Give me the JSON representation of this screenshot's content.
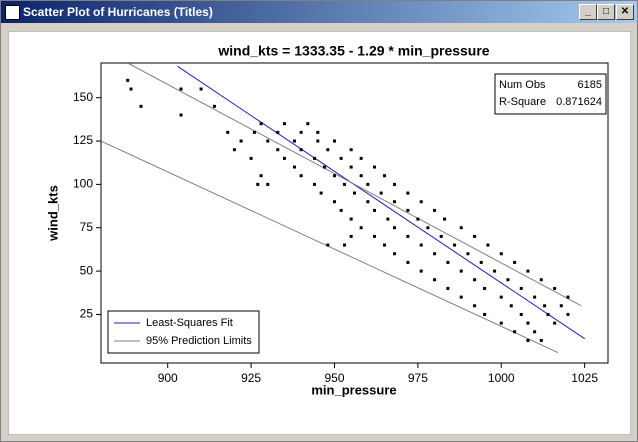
{
  "window": {
    "title": "Scatter Plot of Hurricanes (Titles)"
  },
  "chart_data": {
    "type": "scatter",
    "title": "wind_kts = 1333.35 - 1.29 * min_pressure",
    "xlabel": "min_pressure",
    "ylabel": "wind_kts",
    "xlim": [
      880,
      1032
    ],
    "ylim": [
      -3,
      170
    ],
    "xticks": [
      900,
      925,
      950,
      975,
      1000,
      1025
    ],
    "yticks": [
      25,
      50,
      75,
      100,
      125,
      150
    ],
    "color": "#000000",
    "x": [
      888,
      889,
      892,
      904,
      904,
      910,
      914,
      918,
      920,
      922,
      925,
      927,
      928,
      930,
      948,
      953,
      955,
      928,
      935,
      942,
      926,
      933,
      940,
      945,
      930,
      938,
      945,
      950,
      933,
      940,
      948,
      955,
      935,
      944,
      952,
      958,
      938,
      947,
      955,
      962,
      940,
      950,
      958,
      965,
      944,
      953,
      960,
      968,
      946,
      956,
      964,
      972,
      950,
      960,
      968,
      976,
      952,
      962,
      972,
      980,
      955,
      966,
      975,
      983,
      958,
      968,
      978,
      988,
      962,
      972,
      982,
      992,
      965,
      976,
      986,
      996,
      968,
      980,
      990,
      1000,
      972,
      984,
      994,
      1004,
      976,
      988,
      998,
      1008,
      980,
      992,
      1002,
      1012,
      984,
      995,
      1006,
      1016,
      988,
      1000,
      1010,
      1020,
      992,
      1003,
      1013,
      1018,
      995,
      1006,
      1014,
      1020,
      1000,
      1008,
      1016,
      1004,
      1010,
      1008,
      1012
    ],
    "values": [
      160,
      155,
      145,
      155,
      140,
      155,
      145,
      130,
      120,
      125,
      115,
      100,
      105,
      100,
      65,
      65,
      70,
      135,
      135,
      135,
      130,
      130,
      130,
      130,
      125,
      125,
      125,
      125,
      120,
      120,
      120,
      120,
      115,
      115,
      115,
      115,
      110,
      110,
      110,
      110,
      105,
      105,
      105,
      105,
      100,
      100,
      100,
      100,
      95,
      95,
      95,
      95,
      90,
      90,
      90,
      90,
      85,
      85,
      85,
      85,
      80,
      80,
      80,
      80,
      75,
      75,
      75,
      75,
      70,
      70,
      70,
      70,
      65,
      65,
      65,
      65,
      60,
      60,
      60,
      60,
      55,
      55,
      55,
      55,
      50,
      50,
      50,
      50,
      45,
      45,
      45,
      45,
      40,
      40,
      40,
      40,
      35,
      35,
      35,
      35,
      30,
      30,
      30,
      30,
      25,
      25,
      25,
      25,
      20,
      20,
      20,
      15,
      15,
      10,
      10
    ],
    "series": [
      {
        "name": "Least-Squares Fit",
        "color": "#2020b0",
        "x": [
          903,
          1025
        ],
        "values": [
          168,
          11
        ]
      },
      {
        "name": "95% Prediction Limits",
        "color": "#808080",
        "x": [
          888,
          1024
        ],
        "values": [
          170,
          30
        ]
      },
      {
        "x": [
          880,
          1017
        ],
        "values": [
          125,
          3
        ],
        "color": "#808080"
      }
    ],
    "legend": "lower left",
    "inset": [
      {
        "label": "Num Obs",
        "value": 6185
      },
      {
        "label": "R-Square",
        "value": 0.871624
      }
    ]
  }
}
